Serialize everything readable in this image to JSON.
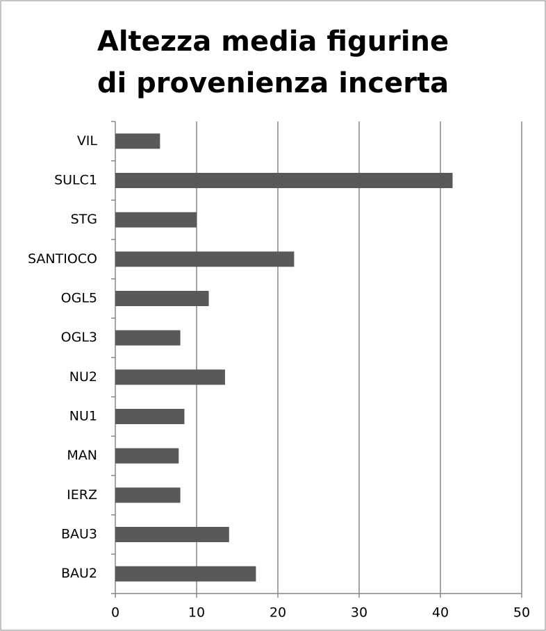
{
  "chart_data": {
    "type": "bar",
    "orientation": "horizontal",
    "title": "Altezza media figurine di provenienza incerta",
    "categories": [
      "BAU2",
      "BAU3",
      "IERZ",
      "MAN",
      "NU1",
      "NU2",
      "OGL3",
      "OGL5",
      "SANTIOCO",
      "STG",
      "SULC1",
      "VIL"
    ],
    "values": [
      17.3,
      14,
      8,
      7.8,
      8.5,
      13.5,
      8,
      11.5,
      22,
      10,
      41.5,
      5.5
    ],
    "color": "#595959",
    "xlim": [
      0,
      50
    ],
    "xticks": [
      0,
      10,
      20,
      30,
      40,
      50
    ],
    "grid": true
  }
}
